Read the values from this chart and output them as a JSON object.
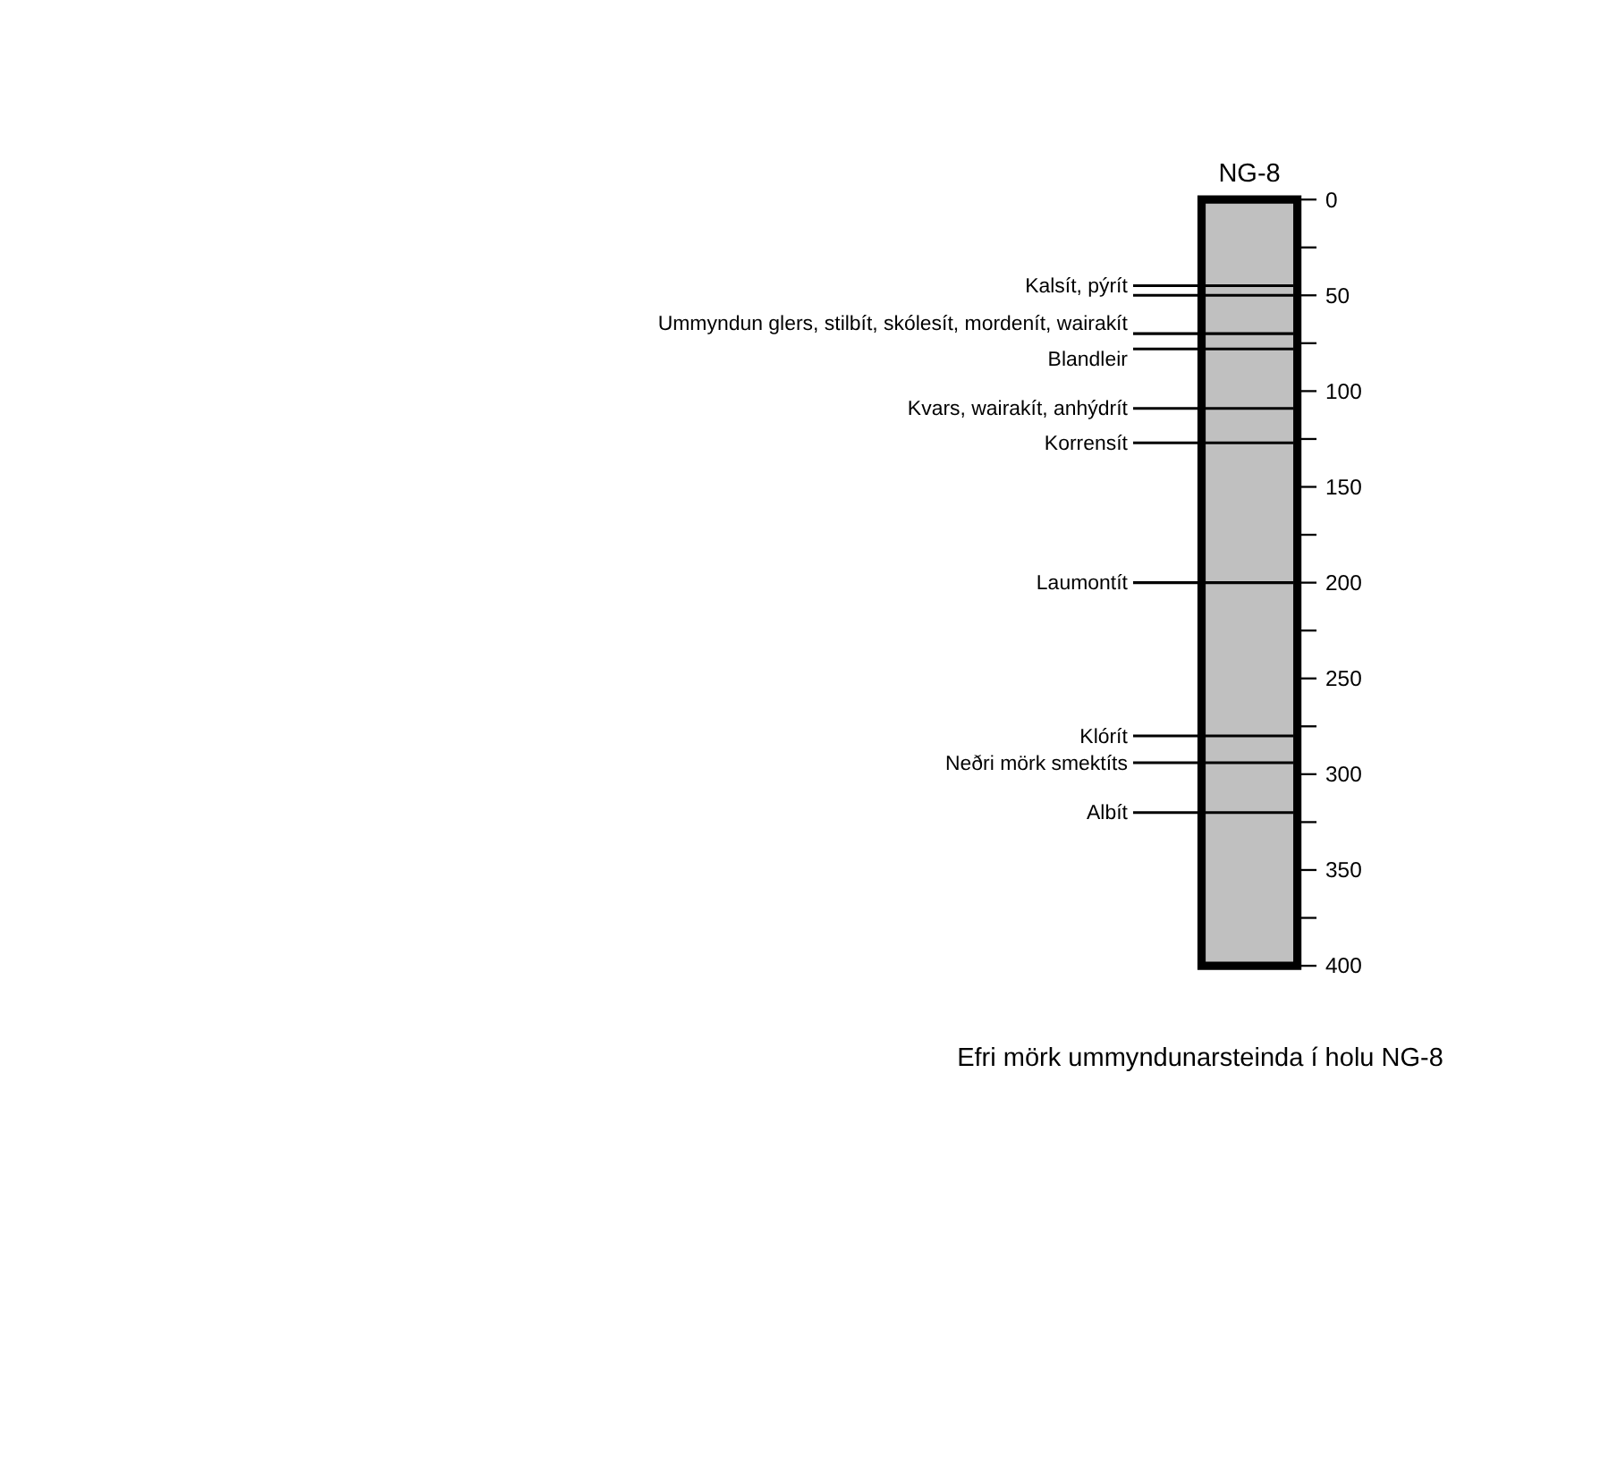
{
  "chart_data": {
    "type": "bar",
    "categories": [
      "NG-8"
    ],
    "values": [
      400
    ],
    "base": [
      0
    ],
    "color": "#c0c0c0",
    "ylim": [
      400,
      0
    ],
    "yticks": [
      0,
      {
        "value": 25,
        "label": null
      },
      50,
      {
        "value": 75,
        "label": null
      },
      100,
      {
        "value": 125,
        "label": null
      },
      150,
      {
        "value": 175,
        "label": null
      },
      200,
      {
        "value": 225,
        "label": null
      },
      250,
      {
        "value": 275,
        "label": null
      },
      300,
      {
        "value": 325,
        "label": null
      },
      350,
      {
        "value": 375,
        "label": null
      },
      400
    ],
    "ref_lines": [
      {
        "axis": "y",
        "value": 45,
        "label": "Kalsít, pýrít"
      },
      {
        "axis": "y",
        "value": 50,
        "label": null
      },
      {
        "axis": "y",
        "value": 70,
        "label": "Ummyndun glers, stilbít, skólesít, mordenít, wairakít"
      },
      {
        "axis": "y",
        "value": 78,
        "label": "Blandleir"
      },
      {
        "axis": "y",
        "value": 109,
        "label": "Kvars, wairakít, anhýdrít"
      },
      {
        "axis": "y",
        "value": 127,
        "label": "Korrensít"
      },
      {
        "axis": "y",
        "value": 200,
        "label": "Laumontít"
      },
      {
        "axis": "y",
        "value": 280,
        "label": "Klórít"
      },
      {
        "axis": "y",
        "value": 294,
        "label": "Neðri mörk smektíts"
      },
      {
        "axis": "y",
        "value": 320,
        "label": "Albít"
      }
    ],
    "annotations": [
      "Efri mörk ummyndunarsteinda í holu NG-8"
    ]
  }
}
